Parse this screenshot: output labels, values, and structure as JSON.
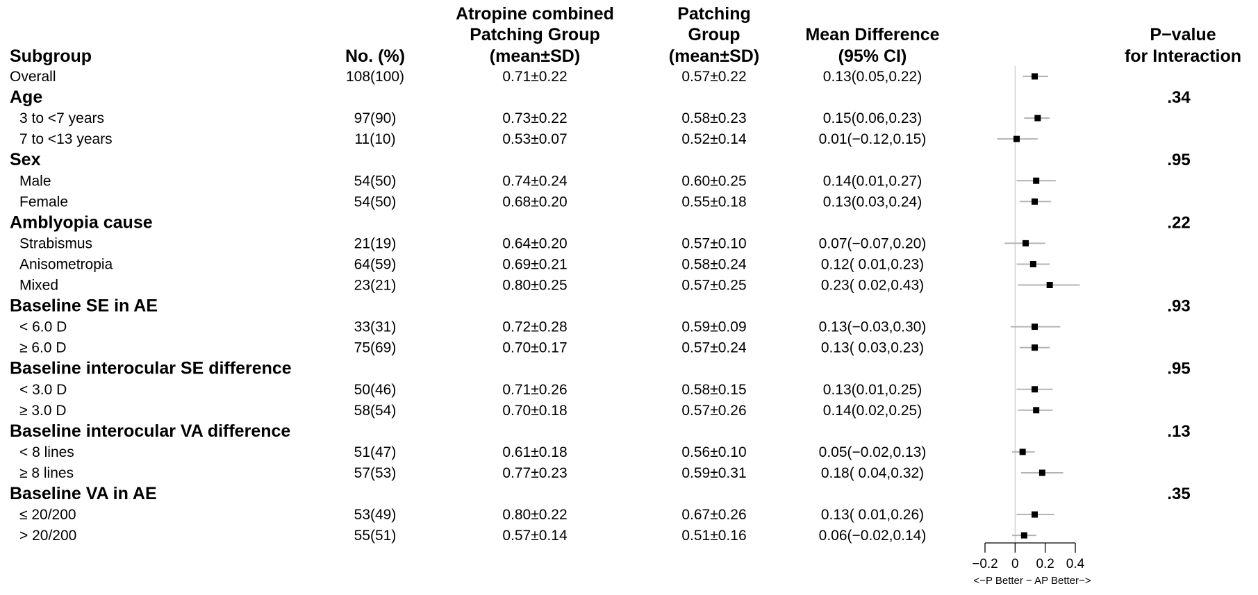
{
  "headers": {
    "subgroup": "Subgroup",
    "n": "No. (%)",
    "ap": [
      "Atropine combined",
      "Patching Group",
      "(mean±SD)"
    ],
    "p": [
      "Patching",
      "Group",
      "(mean±SD)"
    ],
    "md": [
      "Mean Difference",
      "(95% CI)"
    ],
    "pint": [
      "P−value",
      "for Interaction"
    ]
  },
  "chart_data": {
    "type": "forest",
    "xlim": [
      -0.2,
      0.4
    ],
    "ticks": [
      -0.2,
      0,
      0.2,
      0.4
    ],
    "tick_labels": [
      "−0.2",
      "0",
      "0.2",
      "0.4"
    ],
    "xlabel": "<−P Better − AP Better−>",
    "rows": [
      {
        "type": "row",
        "label": "Overall",
        "n": "108(100)",
        "ap": "0.71±0.22",
        "p": "0.57±0.22",
        "ci_text": "0.13(0.05,0.22)",
        "est": 0.13,
        "lo": 0.05,
        "hi": 0.22
      },
      {
        "type": "group",
        "label": "Age",
        "pval": ".34"
      },
      {
        "type": "row",
        "label": "3 to <7 years",
        "n": "97(90)",
        "ap": "0.73±0.22",
        "p": "0.58±0.23",
        "ci_text": "0.15(0.06,0.23)",
        "est": 0.15,
        "lo": 0.06,
        "hi": 0.23
      },
      {
        "type": "row",
        "label": "7 to <13 years",
        "n": "11(10)",
        "ap": "0.53±0.07",
        "p": "0.52±0.14",
        "ci_text": "0.01(−0.12,0.15)",
        "est": 0.01,
        "lo": -0.12,
        "hi": 0.15
      },
      {
        "type": "group",
        "label": "Sex",
        "pval": ".95"
      },
      {
        "type": "row",
        "label": "Male",
        "n": "54(50)",
        "ap": "0.74±0.24",
        "p": "0.60±0.25",
        "ci_text": "0.14(0.01,0.27)",
        "est": 0.14,
        "lo": 0.01,
        "hi": 0.27
      },
      {
        "type": "row",
        "label": "Female",
        "n": "54(50)",
        "ap": "0.68±0.20",
        "p": "0.55±0.18",
        "ci_text": "0.13(0.03,0.24)",
        "est": 0.13,
        "lo": 0.03,
        "hi": 0.24
      },
      {
        "type": "group",
        "label": "Amblyopia cause",
        "pval": ".22"
      },
      {
        "type": "row",
        "label": "Strabismus",
        "n": "21(19)",
        "ap": "0.64±0.20",
        "p": "0.57±0.10",
        "ci_text": "0.07(−0.07,0.20)",
        "est": 0.07,
        "lo": -0.07,
        "hi": 0.2
      },
      {
        "type": "row",
        "label": "Anisometropia",
        "n": "64(59)",
        "ap": "0.69±0.21",
        "p": "0.58±0.24",
        "ci_text": "0.12( 0.01,0.23)",
        "est": 0.12,
        "lo": 0.01,
        "hi": 0.23
      },
      {
        "type": "row",
        "label": "Mixed",
        "n": "23(21)",
        "ap": "0.80±0.25",
        "p": "0.57±0.25",
        "ci_text": "0.23( 0.02,0.43)",
        "est": 0.23,
        "lo": 0.02,
        "hi": 0.43
      },
      {
        "type": "group",
        "label": "Baseline SE in AE",
        "pval": ".93"
      },
      {
        "type": "row",
        "label": "< 6.0 D",
        "n": "33(31)",
        "ap": "0.72±0.28",
        "p": "0.59±0.09",
        "ci_text": "0.13(−0.03,0.30)",
        "est": 0.13,
        "lo": -0.03,
        "hi": 0.3
      },
      {
        "type": "row",
        "label": "≥ 6.0 D",
        "n": "75(69)",
        "ap": "0.70±0.17",
        "p": "0.57±0.24",
        "ci_text": "0.13( 0.03,0.23)",
        "est": 0.13,
        "lo": 0.03,
        "hi": 0.23
      },
      {
        "type": "group",
        "label": "Baseline interocular SE difference",
        "pval": ".95"
      },
      {
        "type": "row",
        "label": "< 3.0 D",
        "n": "50(46)",
        "ap": "0.71±0.26",
        "p": "0.58±0.15",
        "ci_text": "0.13(0.01,0.25)",
        "est": 0.13,
        "lo": 0.01,
        "hi": 0.25
      },
      {
        "type": "row",
        "label": "≥ 3.0 D",
        "n": "58(54)",
        "ap": "0.70±0.18",
        "p": "0.57±0.26",
        "ci_text": "0.14(0.02,0.25)",
        "est": 0.14,
        "lo": 0.02,
        "hi": 0.25
      },
      {
        "type": "group",
        "label": "Baseline interocular VA difference",
        "pval": ".13"
      },
      {
        "type": "row",
        "label": "< 8 lines",
        "n": "51(47)",
        "ap": "0.61±0.18",
        "p": "0.56±0.10",
        "ci_text": "0.05(−0.02,0.13)",
        "est": 0.05,
        "lo": -0.02,
        "hi": 0.13
      },
      {
        "type": "row",
        "label": "≥ 8 lines",
        "n": "57(53)",
        "ap": "0.77±0.23",
        "p": "0.59±0.31",
        "ci_text": "0.18( 0.04,0.32)",
        "est": 0.18,
        "lo": 0.04,
        "hi": 0.32
      },
      {
        "type": "group",
        "label": "Baseline VA in AE",
        "pval": ".35"
      },
      {
        "type": "row",
        "label": "≤ 20/200",
        "n": "53(49)",
        "ap": "0.80±0.22",
        "p": "0.67±0.26",
        "ci_text": "0.13( 0.01,0.26)",
        "est": 0.13,
        "lo": 0.01,
        "hi": 0.26
      },
      {
        "type": "row",
        "label": "> 20/200",
        "n": "55(51)",
        "ap": "0.57±0.14",
        "p": "0.51±0.16",
        "ci_text": "0.06(−0.02,0.14)",
        "est": 0.06,
        "lo": -0.02,
        "hi": 0.14
      }
    ]
  },
  "colors": {
    "text": "#000000",
    "ci_line": "#b3b3b3",
    "ref_line": "#c8c8c8",
    "marker": "#000000",
    "axis": "#000000"
  }
}
